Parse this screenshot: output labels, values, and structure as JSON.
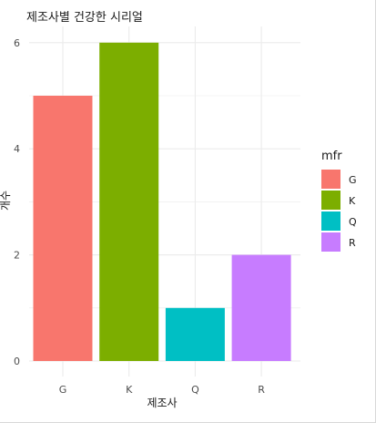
{
  "chart_data": {
    "type": "bar",
    "title": "제조사별 건강한 시리얼",
    "xlabel": "제조사",
    "ylabel": "개수",
    "categories": [
      "G",
      "K",
      "Q",
      "R"
    ],
    "values": [
      5,
      6,
      1,
      2
    ],
    "ylim": [
      0,
      6.3
    ],
    "yticks": [
      0,
      2,
      4,
      6
    ],
    "grid": true,
    "legend": {
      "title": "mfr",
      "placement": "right",
      "entries": [
        "G",
        "K",
        "Q",
        "R"
      ]
    },
    "colors": [
      "#F8766D",
      "#7CAE00",
      "#00BFC4",
      "#C77CFF"
    ]
  }
}
